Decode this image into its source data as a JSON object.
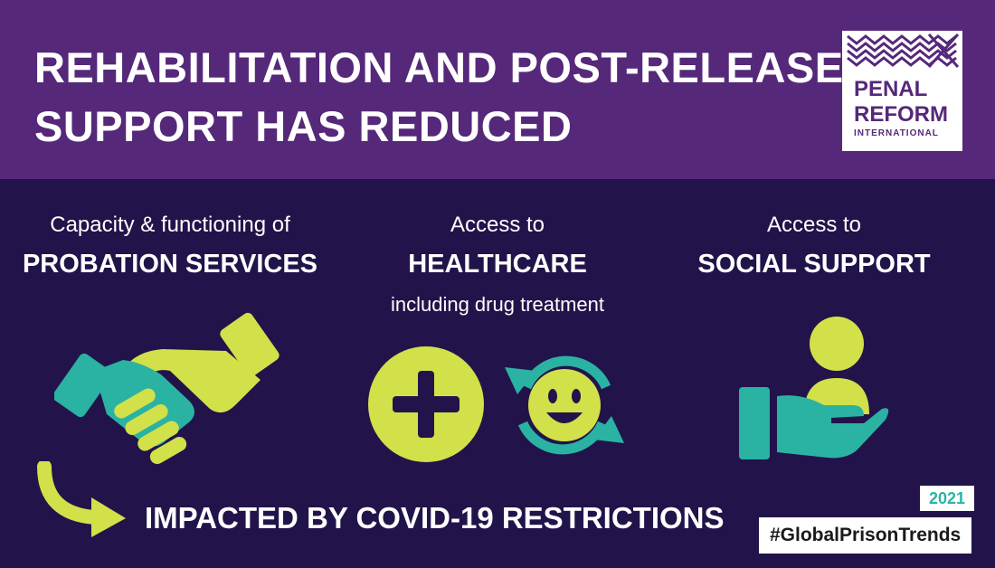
{
  "header": {
    "title_line1": "REHABILITATION AND POST-RELEASE",
    "title_line2": "SUPPORT HAS REDUCED"
  },
  "logo": {
    "line1": "PENAL",
    "line2": "REFORM",
    "line3": "INTERNATIONAL"
  },
  "columns": [
    {
      "sub": "Capacity & functioning of",
      "head": "PROBATION SERVICES",
      "icon": "handshake-icon"
    },
    {
      "sub": "Access to",
      "head": "HEALTHCARE",
      "note": "including drug treatment",
      "icon": "medical-plus-icon"
    },
    {
      "sub": "Access to",
      "head": "SOCIAL SUPPORT",
      "icon": "hand-person-icon"
    }
  ],
  "bottom": {
    "text": "IMPACTED BY COVID-19 RESTRICTIONS"
  },
  "badges": {
    "year": "2021",
    "hashtag": "#GlobalPrisonTrends"
  },
  "colors": {
    "header_bg": "#55287a",
    "body_bg": "#22144a",
    "lime": "#d2e04a",
    "teal": "#2ab3a3"
  }
}
